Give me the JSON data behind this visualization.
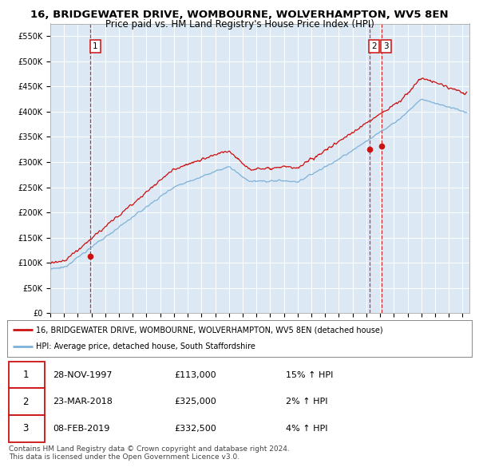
{
  "title": "16, BRIDGEWATER DRIVE, WOMBOURNE, WOLVERHAMPTON, WV5 8EN",
  "subtitle": "Price paid vs. HM Land Registry's House Price Index (HPI)",
  "ylim": [
    0,
    575000
  ],
  "xlim_start": 1995.0,
  "xlim_end": 2025.5,
  "sale_dates": [
    1997.92,
    2018.23,
    2019.11
  ],
  "sale_prices": [
    113000,
    325000,
    332500
  ],
  "sale_labels": [
    "1",
    "2",
    "3"
  ],
  "red_line_color": "#cc1111",
  "blue_line_color": "#7fb2d8",
  "chart_bg_color": "#dce9f5",
  "background_color": "#ffffff",
  "grid_color": "#ffffff",
  "legend_box_text1": "16, BRIDGEWATER DRIVE, WOMBOURNE, WOLVERHAMPTON, WV5 8EN (detached house)",
  "legend_box_text2": "HPI: Average price, detached house, South Staffordshire",
  "table_rows": [
    [
      "1",
      "28-NOV-1997",
      "£113,000",
      "15% ↑ HPI"
    ],
    [
      "2",
      "23-MAR-2018",
      "£325,000",
      "2% ↑ HPI"
    ],
    [
      "3",
      "08-FEB-2019",
      "£332,500",
      "4% ↑ HPI"
    ]
  ],
  "footer_text": "Contains HM Land Registry data © Crown copyright and database right 2024.\nThis data is licensed under the Open Government Licence v3.0."
}
